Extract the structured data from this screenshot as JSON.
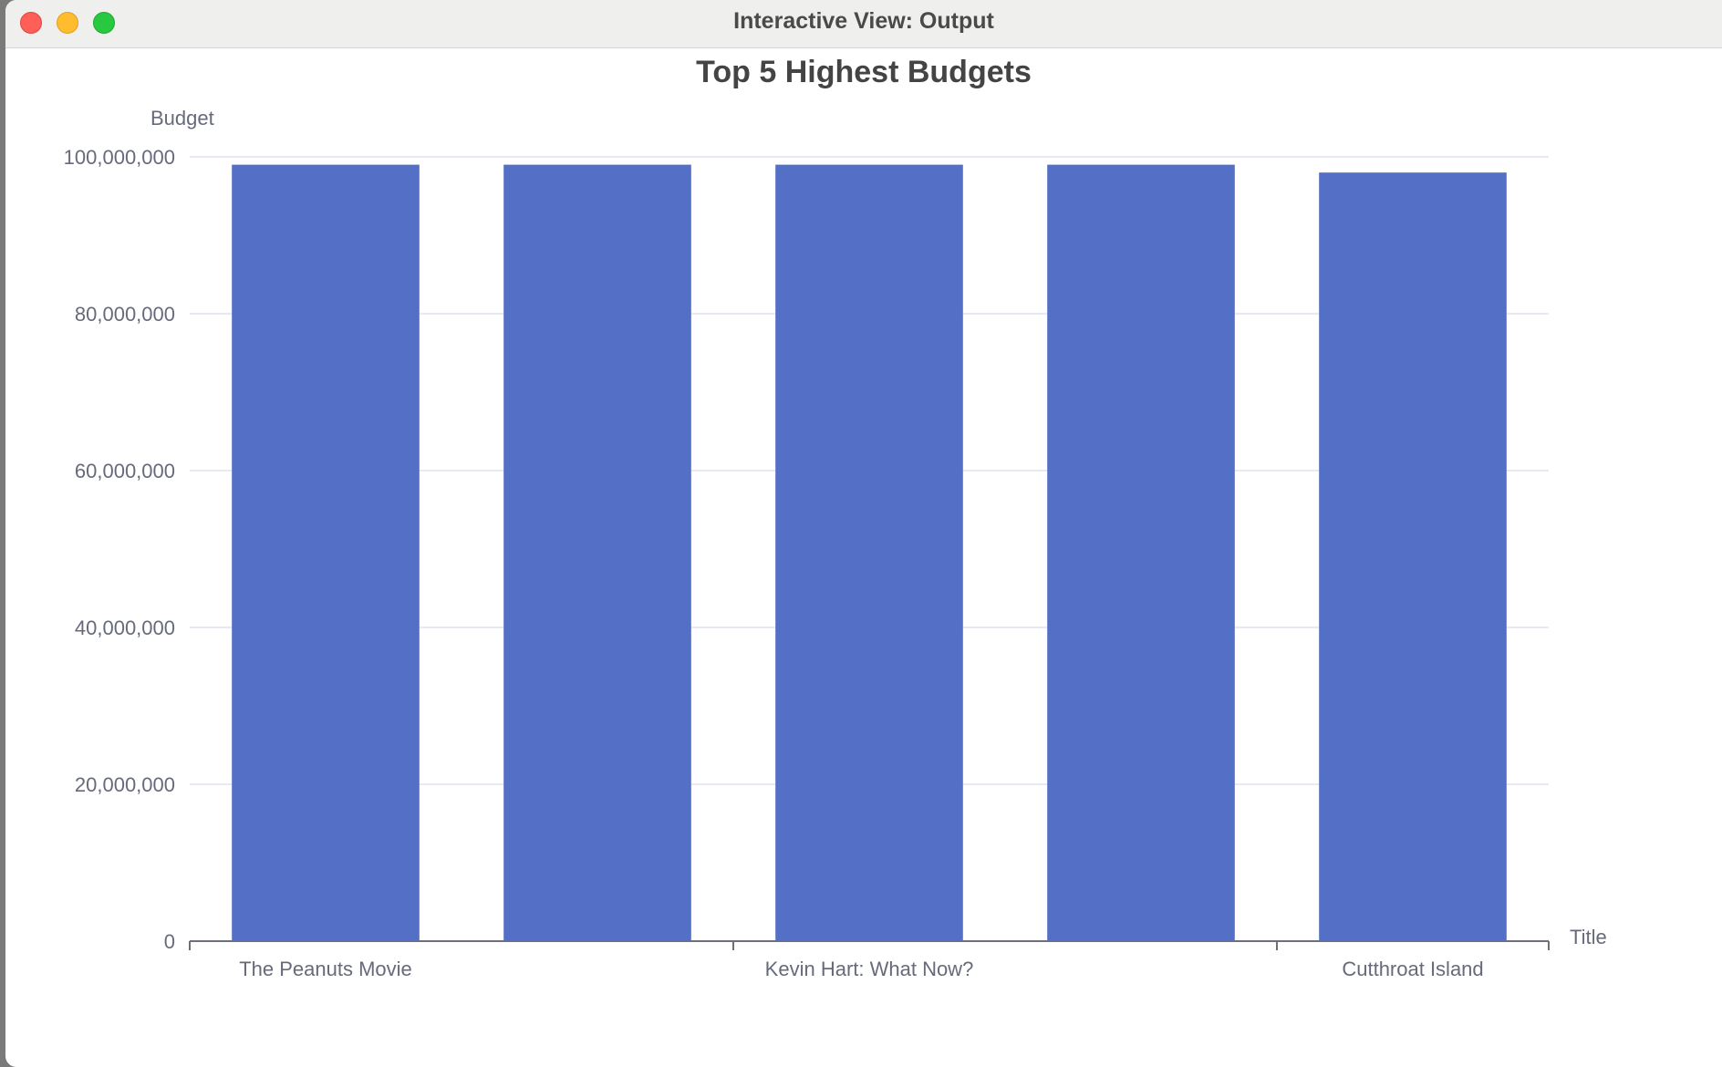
{
  "window": {
    "title": "Interactive View: Output"
  },
  "chart_data": {
    "type": "bar",
    "title": "Top 5 Highest Budgets",
    "ylabel": "Budget",
    "xlabel": "Title",
    "categories": [
      "The Peanuts Movie",
      "",
      "Kevin Hart: What Now?",
      "",
      "Cutthroat Island"
    ],
    "values": [
      99000000,
      99000000,
      99000000,
      99000000,
      98000000
    ],
    "ylim": [
      0,
      100000000
    ],
    "yticks": [
      "0",
      "20,000,000",
      "40,000,000",
      "60,000,000",
      "80,000,000",
      "100,000,000"
    ],
    "ytick_values": [
      0,
      20000000,
      40000000,
      60000000,
      80000000,
      100000000
    ],
    "grid": true,
    "bar_color": "#5470c6"
  }
}
